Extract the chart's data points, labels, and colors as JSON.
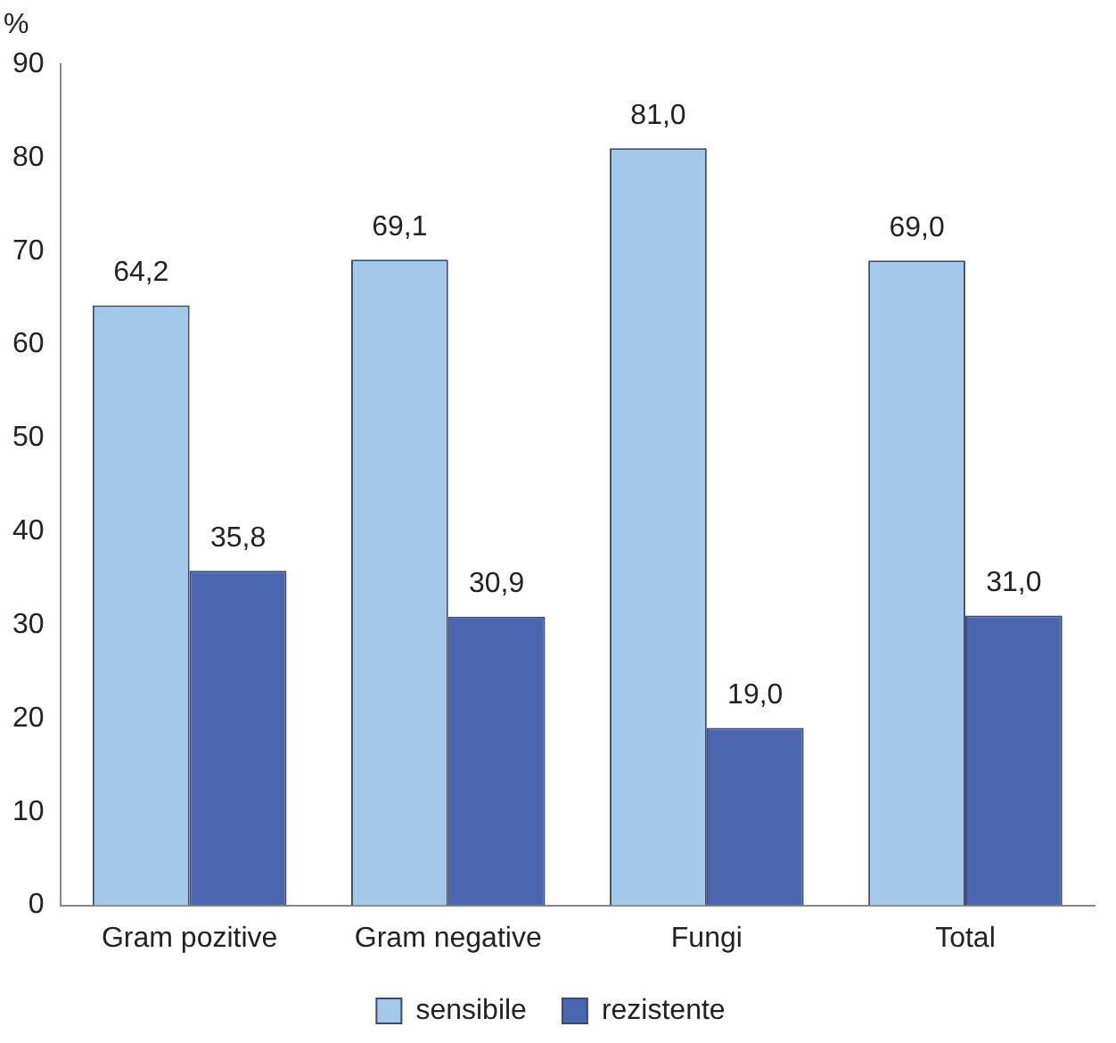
{
  "chart_data": {
    "type": "bar",
    "ylabel": "%",
    "categories": [
      "Gram pozitive",
      "Gram negative",
      "Fungi",
      "Total"
    ],
    "series": [
      {
        "name": "sensibile",
        "color": "#a4c8ea",
        "values": [
          64.2,
          69.1,
          81.0,
          69.0
        ],
        "value_labels": [
          "64,2",
          "69,1",
          "81,0",
          "69,0"
        ]
      },
      {
        "name": "rezistente",
        "color": "#4a66b0",
        "values": [
          35.8,
          30.9,
          19.0,
          31.0
        ],
        "value_labels": [
          "35,8",
          "30,9",
          "19,0",
          "31,0"
        ]
      }
    ],
    "ylim": [
      0,
      90
    ],
    "yticks": [
      0,
      10,
      20,
      30,
      40,
      50,
      60,
      70,
      80,
      90
    ],
    "grid": false,
    "legend": "bottom"
  }
}
